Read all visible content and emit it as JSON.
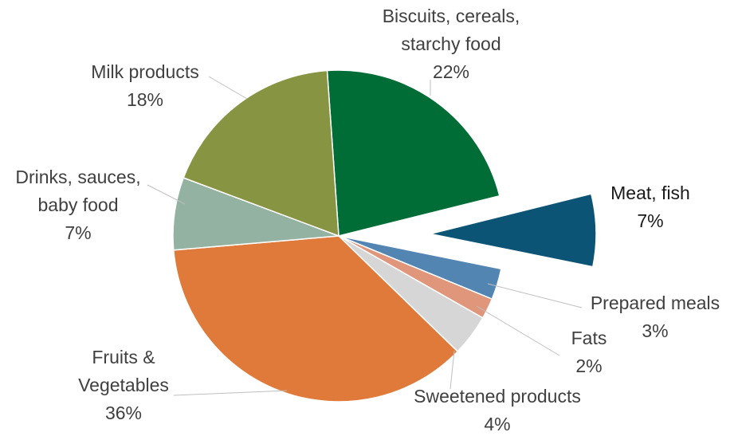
{
  "chart_data": {
    "type": "pie",
    "title": "",
    "legend": "none",
    "exploded": [
      "Meat, fish"
    ],
    "slices": [
      {
        "label": "Biscuits, cereals, starchy food",
        "label_lines": [
          "Biscuits, cereals,",
          "starchy food"
        ],
        "value": 22,
        "value_label": "22%",
        "color": "#006d36"
      },
      {
        "label": "Meat, fish",
        "label_lines": [
          "Meat, fish"
        ],
        "value": 7,
        "value_label": "7%",
        "color": "#0b5475"
      },
      {
        "label": "Prepared meals",
        "label_lines": [
          "Prepared meals"
        ],
        "value": 3,
        "value_label": "3%",
        "color": "#5385b3"
      },
      {
        "label": "Fats",
        "label_lines": [
          "Fats"
        ],
        "value": 2,
        "value_label": "2%",
        "color": "#e0967a"
      },
      {
        "label": "Sweetened products",
        "label_lines": [
          "Sweetened products"
        ],
        "value": 4,
        "value_label": "4%",
        "color": "#d6d6d6"
      },
      {
        "label": "Fruits & Vegetables",
        "label_lines": [
          "Fruits &",
          "Vegetables"
        ],
        "value": 36,
        "value_label": "36%",
        "color": "#df7a3a"
      },
      {
        "label": "Drinks, sauces, baby food",
        "label_lines": [
          "Drinks, sauces,",
          "baby food"
        ],
        "value": 7,
        "value_label": "7%",
        "color": "#93b2a2"
      },
      {
        "label": "Milk products",
        "label_lines": [
          "Milk products"
        ],
        "value": 18,
        "value_label": "18%",
        "color": "#879442"
      }
    ]
  }
}
